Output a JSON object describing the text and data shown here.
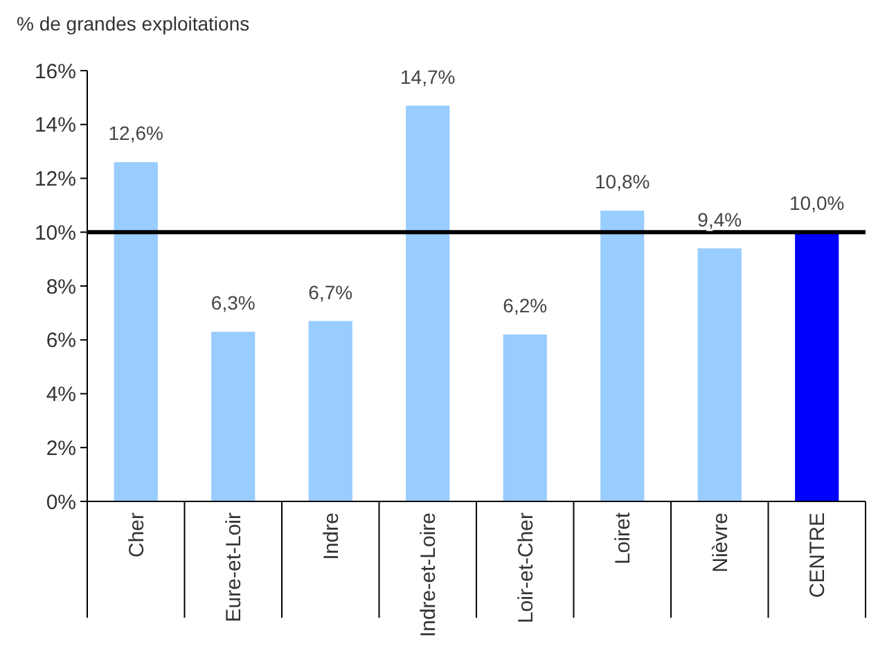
{
  "chart_data": {
    "type": "bar",
    "ylabel": "% de grandes exploitations",
    "categories": [
      "Cher",
      "Eure-et-Loir",
      "Indre",
      "Indre-et-Loire",
      "Loir-et-Cher",
      "Loiret",
      "Nièvre",
      "CENTRE"
    ],
    "values": [
      12.6,
      6.3,
      6.7,
      14.7,
      6.2,
      10.8,
      9.4,
      10.0
    ],
    "colors": [
      "#99ccff",
      "#99ccff",
      "#99ccff",
      "#99ccff",
      "#99ccff",
      "#99ccff",
      "#99ccff",
      "#0000ff"
    ],
    "value_labels": [
      "12,6%",
      "6,3%",
      "6,7%",
      "14,7%",
      "6,2%",
      "10,8%",
      "9,4%",
      "10,0%"
    ],
    "ylim": [
      0,
      16
    ],
    "yticks": [
      {
        "value": 0,
        "label": "0%"
      },
      {
        "value": 2,
        "label": "2%"
      },
      {
        "value": 4,
        "label": "4%"
      },
      {
        "value": 6,
        "label": "6%"
      },
      {
        "value": 8,
        "label": "8%"
      },
      {
        "value": 10,
        "label": "10%"
      },
      {
        "value": 12,
        "label": "12%"
      },
      {
        "value": 14,
        "label": "14%"
      },
      {
        "value": 16,
        "label": "16%"
      }
    ],
    "ref_lines": [
      {
        "axis": "y",
        "value": 10,
        "color": "#000000"
      }
    ],
    "grid": false
  }
}
